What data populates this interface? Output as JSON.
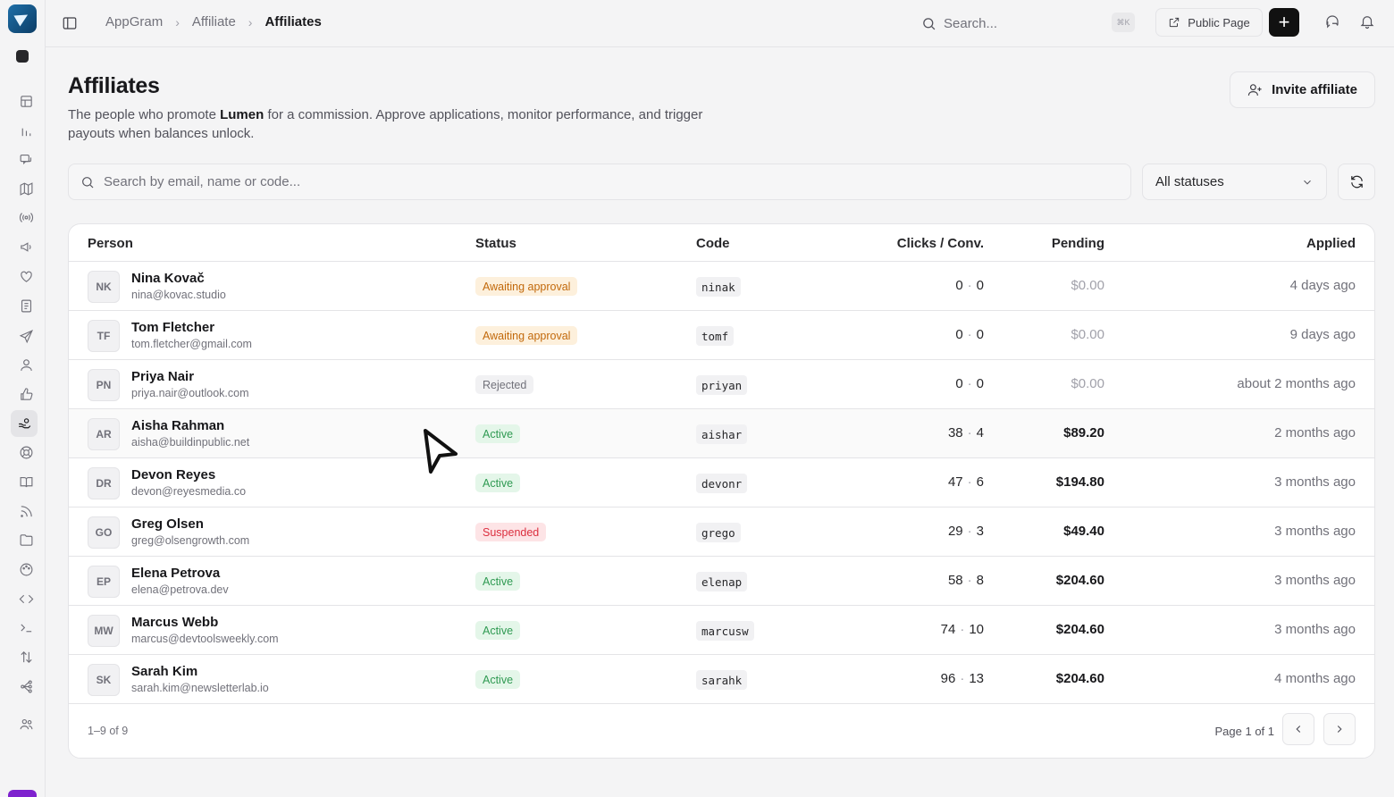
{
  "breadcrumb": {
    "items": [
      "AppGram",
      "Affiliate"
    ],
    "current": "Affiliates"
  },
  "topbar": {
    "search_placeholder": "Search...",
    "shortcut": "⌘K",
    "public_page_label": "Public Page",
    "plus_label": "+"
  },
  "header": {
    "title": "Affiliates",
    "desc_before": "The people who promote ",
    "desc_product": "Lumen",
    "desc_after": " for a commission. Approve applications, monitor performance, and trigger payouts when balances unlock.",
    "invite_label": "Invite affiliate"
  },
  "filters": {
    "search_placeholder": "Search by email, name or code...",
    "status_selected": "All statuses"
  },
  "table": {
    "columns": {
      "person": "Person",
      "status": "Status",
      "code": "Code",
      "clicks": "Clicks / Conv.",
      "pending": "Pending",
      "applied": "Applied"
    },
    "rows": [
      {
        "initials": "NK",
        "name": "Nina Kovač",
        "email": "nina@kovac.studio",
        "status": "Awaiting approval",
        "code": "ninak",
        "clicks": "0",
        "conv": "0",
        "pending": "$0.00",
        "applied": "4 days ago"
      },
      {
        "initials": "TF",
        "name": "Tom Fletcher",
        "email": "tom.fletcher@gmail.com",
        "status": "Awaiting approval",
        "code": "tomf",
        "clicks": "0",
        "conv": "0",
        "pending": "$0.00",
        "applied": "9 days ago"
      },
      {
        "initials": "PN",
        "name": "Priya Nair",
        "email": "priya.nair@outlook.com",
        "status": "Rejected",
        "code": "priyan",
        "clicks": "0",
        "conv": "0",
        "pending": "$0.00",
        "applied": "about 2 months ago"
      },
      {
        "initials": "AR",
        "name": "Aisha Rahman",
        "email": "aisha@buildinpublic.net",
        "status": "Active",
        "code": "aishar",
        "clicks": "38",
        "conv": "4",
        "pending": "$89.20",
        "applied": "2 months ago"
      },
      {
        "initials": "DR",
        "name": "Devon Reyes",
        "email": "devon@reyesmedia.co",
        "status": "Active",
        "code": "devonr",
        "clicks": "47",
        "conv": "6",
        "pending": "$194.80",
        "applied": "3 months ago"
      },
      {
        "initials": "GO",
        "name": "Greg Olsen",
        "email": "greg@olsengrowth.com",
        "status": "Suspended",
        "code": "grego",
        "clicks": "29",
        "conv": "3",
        "pending": "$49.40",
        "applied": "3 months ago"
      },
      {
        "initials": "EP",
        "name": "Elena Petrova",
        "email": "elena@petrova.dev",
        "status": "Active",
        "code": "elenap",
        "clicks": "58",
        "conv": "8",
        "pending": "$204.60",
        "applied": "3 months ago"
      },
      {
        "initials": "MW",
        "name": "Marcus Webb",
        "email": "marcus@devtoolsweekly.com",
        "status": "Active",
        "code": "marcusw",
        "clicks": "74",
        "conv": "10",
        "pending": "$204.60",
        "applied": "3 months ago"
      },
      {
        "initials": "SK",
        "name": "Sarah Kim",
        "email": "sarah.kim@newsletterlab.io",
        "status": "Active",
        "code": "sarahk",
        "clicks": "96",
        "conv": "13",
        "pending": "$204.60",
        "applied": "4 months ago"
      }
    ],
    "footer_count": "1–9 of 9",
    "page_info": "Page 1 of 1"
  },
  "colors": {
    "awaiting": "#c2690b",
    "rejected": "#71717a",
    "active": "#2f9a52",
    "suspended": "#dc2f3f",
    "brand": "#1e6fa8"
  },
  "icons": {
    "rail": [
      "dashboard-icon",
      "analytics-icon",
      "feedback-icon",
      "roadmap-icon",
      "broadcast-icon",
      "announcements-icon",
      "wishlist-icon",
      "changelog-icon",
      "campaigns-icon",
      "users-icon",
      "upvotes-icon",
      "affiliates-icon",
      "support-icon",
      "docs-icon",
      "rss-icon",
      "files-icon",
      "theme-icon",
      "embed-icon",
      "terminal-icon",
      "import-export-icon",
      "integrations-icon",
      "team-icon"
    ]
  }
}
